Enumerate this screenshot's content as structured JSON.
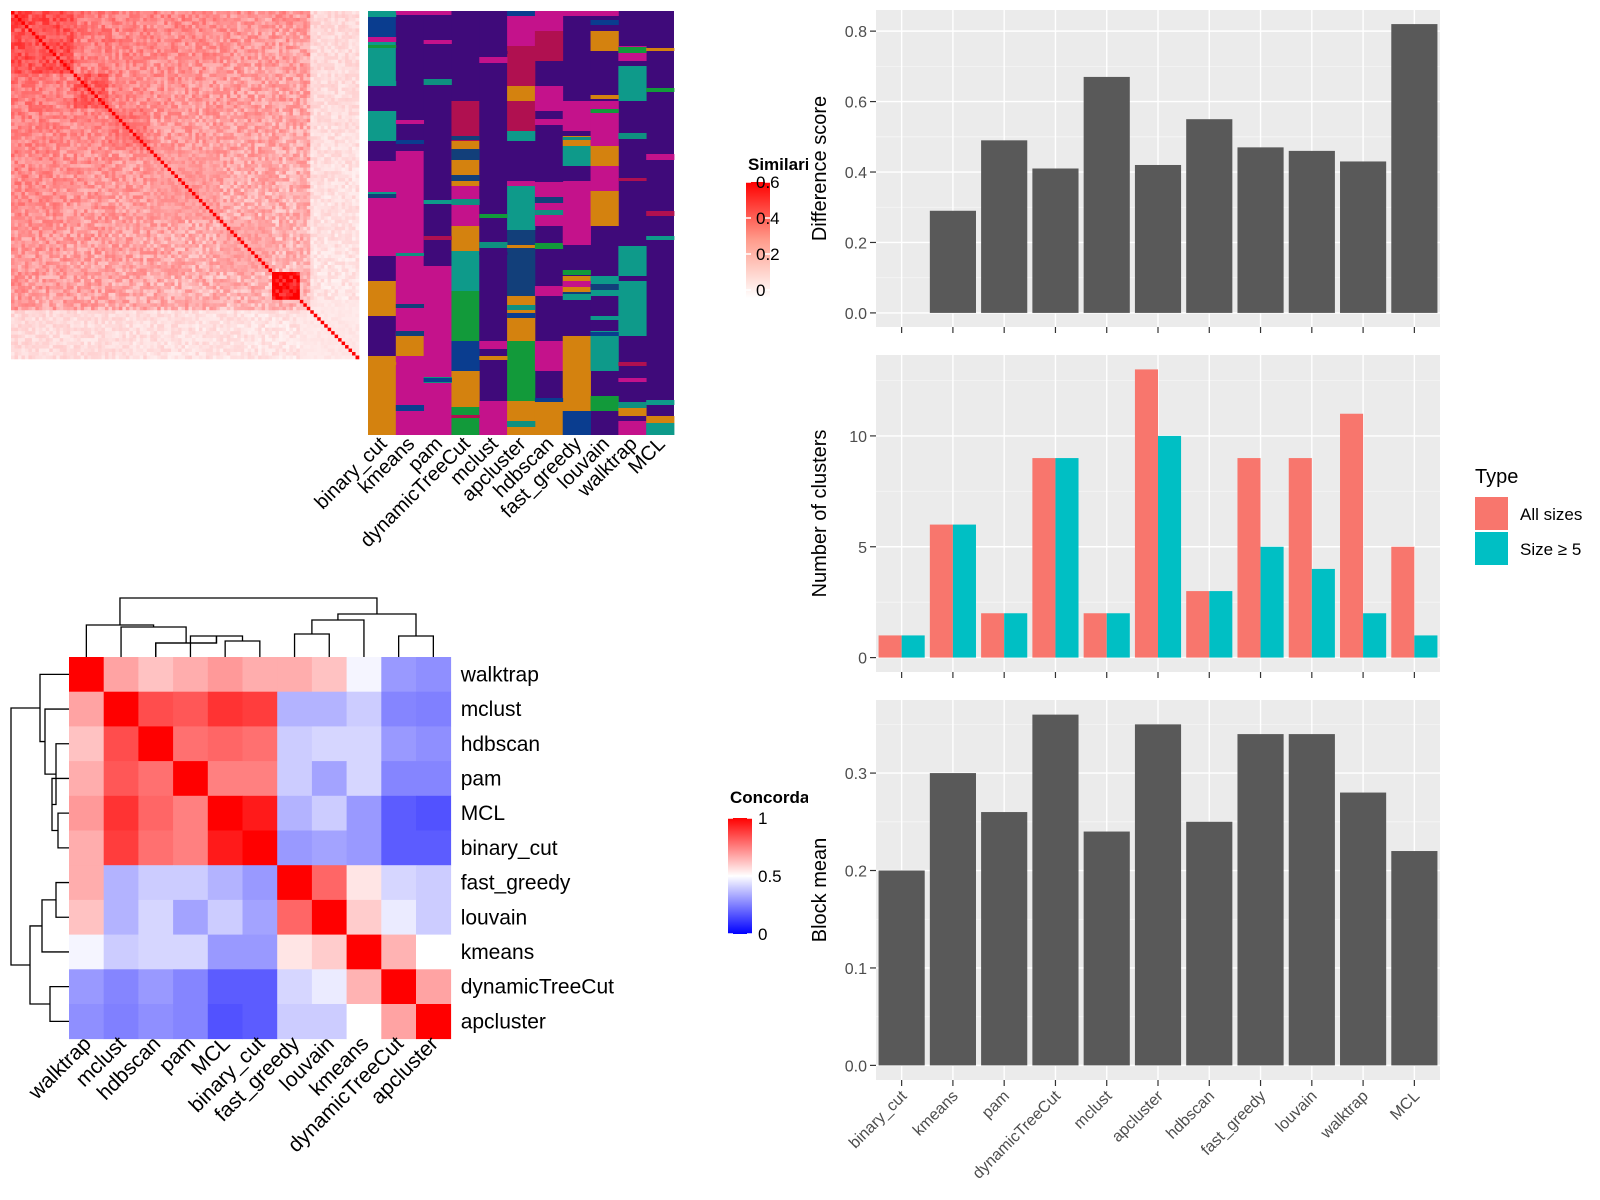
{
  "colors": {
    "panel_bg": "#ebebeb",
    "grid": "#ffffff",
    "bar": "#595959",
    "all_sizes": "#f8766d",
    "size5": "#00bfc4",
    "sim_high": "#ff0000",
    "conc_low": "#0000ff",
    "cluster_palette": [
      "#3f0a7a",
      "#c4128b",
      "#d4820f",
      "#0e9a8a",
      "#b01050",
      "#0a3d8f",
      "#129a3a",
      "#123f7a",
      "#0f9080"
    ]
  },
  "methods": [
    "binary_cut",
    "kmeans",
    "pam",
    "dynamicTreeCut",
    "mclust",
    "apcluster",
    "hdbscan",
    "fast_greedy",
    "louvain",
    "walktrap",
    "MCL"
  ],
  "similarity_legend": {
    "title": "Similarity",
    "ticks": [
      "0.6",
      "0.4",
      "0.2",
      "0"
    ]
  },
  "concordance_legend": {
    "title": "Concordance",
    "ticks": [
      "1",
      "0.5",
      "0"
    ]
  },
  "concordance_heatmap": {
    "order": [
      "walktrap",
      "mclust",
      "hdbscan",
      "pam",
      "MCL",
      "binary_cut",
      "fast_greedy",
      "louvain",
      "kmeans",
      "dynamicTreeCut",
      "apcluster"
    ],
    "matrix": [
      [
        1.0,
        0.68,
        0.62,
        0.66,
        0.7,
        0.66,
        0.66,
        0.62,
        0.48,
        0.3,
        0.28
      ],
      [
        0.68,
        1.0,
        0.85,
        0.83,
        0.9,
        0.88,
        0.35,
        0.35,
        0.4,
        0.26,
        0.25
      ],
      [
        0.62,
        0.85,
        1.0,
        0.78,
        0.8,
        0.78,
        0.4,
        0.42,
        0.42,
        0.3,
        0.28
      ],
      [
        0.66,
        0.83,
        0.78,
        1.0,
        0.75,
        0.75,
        0.4,
        0.32,
        0.42,
        0.26,
        0.26
      ],
      [
        0.7,
        0.9,
        0.8,
        0.75,
        1.0,
        0.95,
        0.35,
        0.4,
        0.3,
        0.18,
        0.16
      ],
      [
        0.66,
        0.88,
        0.78,
        0.75,
        0.95,
        1.0,
        0.3,
        0.32,
        0.3,
        0.18,
        0.18
      ],
      [
        0.66,
        0.35,
        0.4,
        0.4,
        0.35,
        0.3,
        1.0,
        0.8,
        0.55,
        0.42,
        0.4
      ],
      [
        0.62,
        0.35,
        0.42,
        0.32,
        0.4,
        0.32,
        0.8,
        1.0,
        0.6,
        0.46,
        0.4
      ],
      [
        0.48,
        0.4,
        0.42,
        0.42,
        0.3,
        0.3,
        0.55,
        0.6,
        1.0,
        0.65,
        0.5
      ],
      [
        0.3,
        0.26,
        0.3,
        0.26,
        0.18,
        0.18,
        0.42,
        0.46,
        0.65,
        1.0,
        0.68
      ],
      [
        0.28,
        0.25,
        0.28,
        0.26,
        0.16,
        0.18,
        0.4,
        0.4,
        0.5,
        0.68,
        1.0
      ]
    ]
  },
  "chart_data": [
    {
      "type": "bar",
      "categories": [
        "binary_cut",
        "kmeans",
        "pam",
        "dynamicTreeCut",
        "mclust",
        "apcluster",
        "hdbscan",
        "fast_greedy",
        "louvain",
        "walktrap",
        "MCL"
      ],
      "values": [
        0.0,
        0.29,
        0.49,
        0.41,
        0.67,
        0.42,
        0.55,
        0.47,
        0.46,
        0.43,
        0.82
      ],
      "ylabel": "Difference score",
      "ylim": [
        -0.04,
        0.86
      ],
      "yticks": [
        0.0,
        0.2,
        0.4,
        0.6,
        0.8
      ],
      "ytick_labels": [
        "0.0",
        "0.2",
        "0.4",
        "0.6",
        "0.8"
      ],
      "grid": true
    },
    {
      "type": "bar",
      "categories": [
        "binary_cut",
        "kmeans",
        "pam",
        "dynamicTreeCut",
        "mclust",
        "apcluster",
        "hdbscan",
        "fast_greedy",
        "louvain",
        "walktrap",
        "MCL"
      ],
      "series": [
        {
          "name": "All sizes",
          "values": [
            1,
            6,
            2,
            9,
            2,
            13,
            3,
            9,
            9,
            11,
            5
          ]
        },
        {
          "name": "Size ≥ 5",
          "values": [
            1,
            6,
            2,
            9,
            2,
            10,
            3,
            5,
            4,
            2,
            1
          ]
        }
      ],
      "ylabel": "Number of clusters",
      "ylim": [
        -0.65,
        13.65
      ],
      "yticks": [
        0,
        5,
        10
      ],
      "ytick_labels": [
        "0",
        "5",
        "10"
      ],
      "legend_title": "Type",
      "legend_position": "right",
      "grid": true
    },
    {
      "type": "bar",
      "categories": [
        "binary_cut",
        "kmeans",
        "pam",
        "dynamicTreeCut",
        "mclust",
        "apcluster",
        "hdbscan",
        "fast_greedy",
        "louvain",
        "walktrap",
        "MCL"
      ],
      "values": [
        0.2,
        0.3,
        0.26,
        0.36,
        0.24,
        0.35,
        0.25,
        0.34,
        0.34,
        0.28,
        0.22
      ],
      "ylabel": "Block mean",
      "ylim": [
        -0.015,
        0.375
      ],
      "yticks": [
        0.0,
        0.1,
        0.2,
        0.3
      ],
      "ytick_labels": [
        "0.0",
        "0.1",
        "0.2",
        "0.3"
      ],
      "grid": true
    }
  ]
}
